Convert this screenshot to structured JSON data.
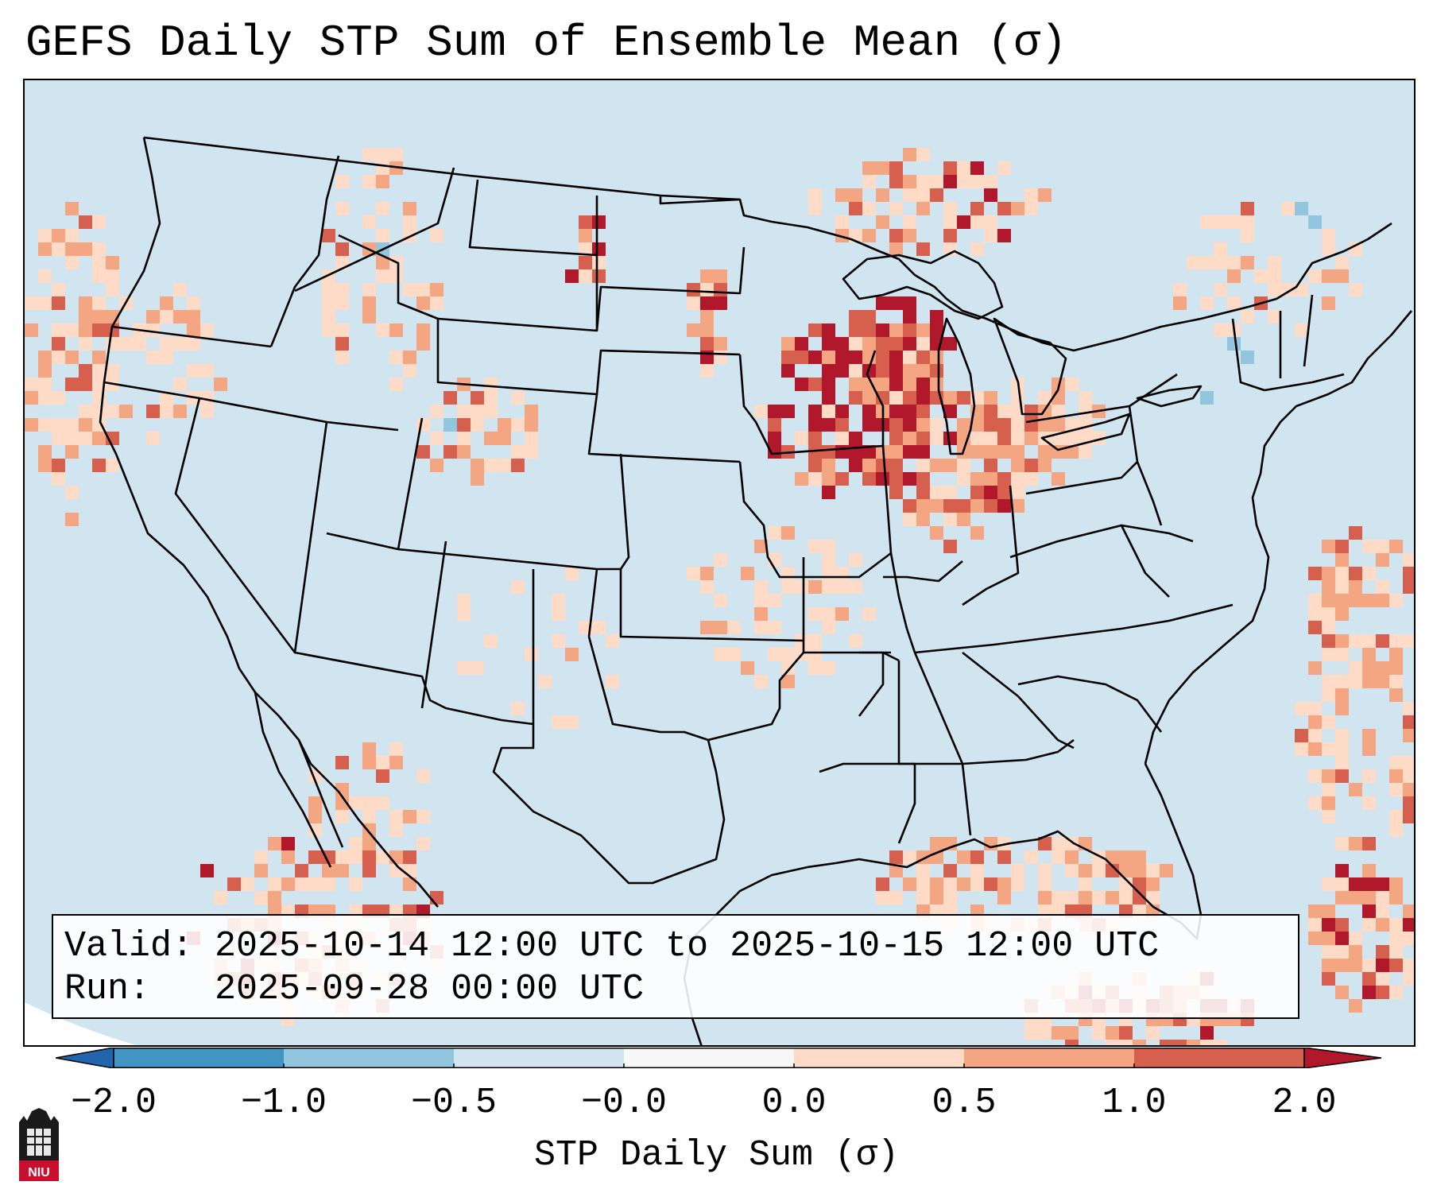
{
  "title": "GEFS Daily STP Sum of Ensemble Mean (σ)",
  "info": {
    "valid_label": "Valid:",
    "valid_value": "2025-10-14 12:00 UTC to 2025-10-15 12:00 UTC",
    "run_label": "Run:",
    "run_value": "2025-09-28 00:00 UTC"
  },
  "colorbar": {
    "title": "STP Daily Sum (σ)",
    "ticks": [
      "−2.0",
      "−1.0",
      "−0.5",
      "−0.0",
      "0.0",
      "0.5",
      "1.0",
      "2.0"
    ],
    "bins": [
      {
        "range": "< -2.0",
        "color": "#2166ac"
      },
      {
        "range": "-2.0 to -1.0",
        "color": "#4393c3"
      },
      {
        "range": "-1.0 to -0.5",
        "color": "#92c5de"
      },
      {
        "range": "-0.5 to 0.0",
        "color": "#d1e5f0"
      },
      {
        "range": "0.0",
        "color": "#f7f7f7"
      },
      {
        "range": "0.0 to 0.5",
        "color": "#fddbc7"
      },
      {
        "range": "0.5 to 1.0",
        "color": "#f4a582"
      },
      {
        "range": "1.0 to 2.0",
        "color": "#d6604d"
      },
      {
        "range": "> 2.0",
        "color": "#b2182b"
      }
    ]
  },
  "logo": {
    "text": "NIU",
    "icon": "university-tower-icon",
    "color": "#c8102e"
  },
  "map": {
    "background_color": "#d1e5f0",
    "max_region": "Upper Mississippi Valley / Great Lakes",
    "colors": {
      "light": "#fddbc7",
      "mid": "#f4a582",
      "strong": "#d6604d",
      "max": "#b2182b"
    }
  }
}
